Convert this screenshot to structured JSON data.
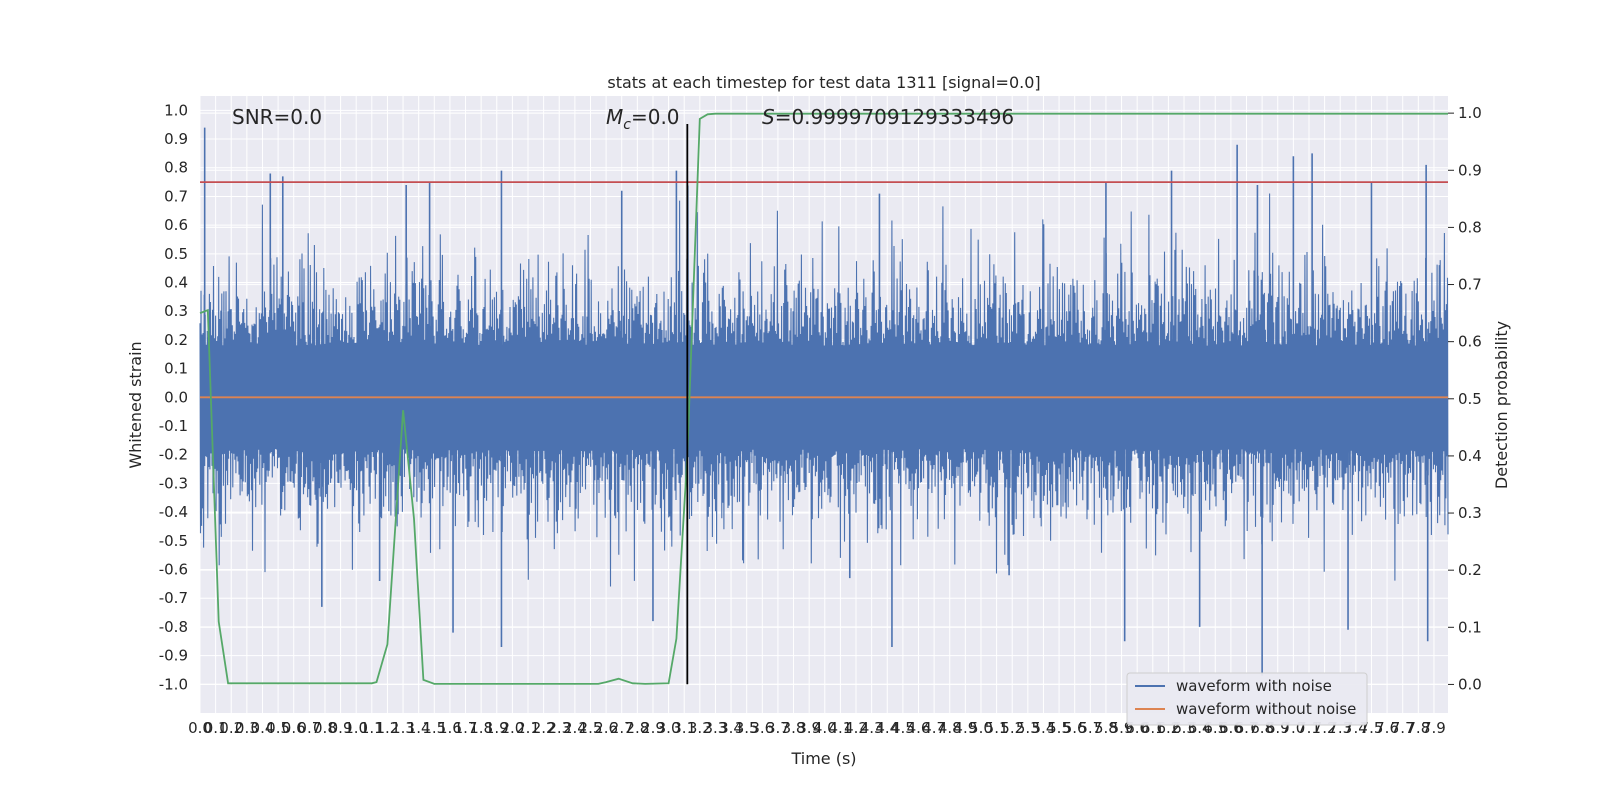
{
  "chart_data": {
    "type": "line",
    "title": "stats at each timestep for test data 1311 [signal=0.0]",
    "xlabel": "Time (s)",
    "ylabel_left": "Whitened strain",
    "ylabel_right": "Detection probability",
    "xlim": [
      0.0,
      7.99
    ],
    "ylim_left": [
      -1.1,
      1.05
    ],
    "ylim_right": [
      -0.05,
      1.03
    ],
    "x_ticks": [
      "0.0",
      "0.1",
      "0.2",
      "0.3",
      "0.4",
      "0.5",
      "0.6",
      "0.7",
      "0.8",
      "0.9",
      "1.0",
      "1.1",
      "1.2",
      "1.3",
      "1.4",
      "1.5",
      "1.6",
      "1.7",
      "1.8",
      "1.9",
      "2.0",
      "2.1",
      "2.2",
      "2.3",
      "2.4",
      "2.5",
      "2.6",
      "2.7",
      "2.8",
      "2.9",
      "3.0",
      "3.1",
      "3.2",
      "3.3",
      "3.4",
      "3.5",
      "3.6",
      "3.7",
      "3.8",
      "3.9",
      "4.0",
      "4.1",
      "4.2",
      "4.3",
      "4.4",
      "4.5",
      "4.6",
      "4.7",
      "4.8",
      "4.9",
      "5.0",
      "5.1",
      "5.2",
      "5.3",
      "5.4",
      "5.5",
      "5.6",
      "5.7",
      "5.8",
      "5.9",
      "6.0",
      "6.1",
      "6.2",
      "6.3",
      "6.4",
      "6.5",
      "6.6",
      "6.7",
      "6.8",
      "6.9",
      "7.0",
      "7.1",
      "7.2",
      "7.3",
      "7.4",
      "7.5",
      "7.6",
      "7.7",
      "7.8",
      "7.9"
    ],
    "y_ticks_left": [
      "1.0",
      "0.9",
      "0.8",
      "0.7",
      "0.6",
      "0.5",
      "0.4",
      "0.3",
      "0.2",
      "0.1",
      "0.0",
      "-0.1",
      "-0.2",
      "-0.3",
      "-0.4",
      "-0.5",
      "-0.6",
      "-0.7",
      "-0.8",
      "-0.9",
      "-1.0"
    ],
    "y_ticks_right": [
      "1.0",
      "0.9",
      "0.8",
      "0.7",
      "0.6",
      "0.5",
      "0.4",
      "0.3",
      "0.2",
      "0.1",
      "0.0"
    ],
    "annotations": {
      "snr": "SNR=0.0",
      "mc": "M",
      "mc_sub": "c",
      "mc_val": "=0.0",
      "s_italic": "S",
      "s_val": "=0.9999709129333496"
    },
    "threshold_left": 0.75,
    "marker_time": 3.12,
    "series": [
      {
        "name": "waveform with noise",
        "color": "#4c72b0",
        "x_start": 0.0,
        "x_end": 7.99,
        "amplitude": 0.33,
        "peaks": [
          [
            0.03,
            0.94
          ],
          [
            0.45,
            0.78
          ],
          [
            0.53,
            0.77
          ],
          [
            0.78,
            -0.73
          ],
          [
            1.15,
            -0.64
          ],
          [
            1.32,
            0.74
          ],
          [
            1.47,
            0.75
          ],
          [
            1.62,
            -0.82
          ],
          [
            1.93,
            0.79
          ],
          [
            1.93,
            -0.87
          ],
          [
            2.7,
            0.72
          ],
          [
            2.9,
            -0.78
          ],
          [
            3.05,
            0.79
          ],
          [
            4.16,
            -0.63
          ],
          [
            4.35,
            0.71
          ],
          [
            4.43,
            -0.87
          ],
          [
            5.18,
            -0.62
          ],
          [
            5.8,
            0.75
          ],
          [
            5.92,
            -0.85
          ],
          [
            6.22,
            0.79
          ],
          [
            6.4,
            -0.8
          ],
          [
            6.64,
            0.88
          ],
          [
            6.77,
            0.74
          ],
          [
            7.0,
            0.84
          ],
          [
            7.12,
            0.85
          ],
          [
            7.35,
            -0.81
          ],
          [
            7.5,
            0.75
          ],
          [
            7.85,
            0.81
          ],
          [
            7.86,
            -0.85
          ],
          [
            6.8,
            -0.97
          ]
        ]
      },
      {
        "name": "waveform without noise",
        "color": "#dd8452",
        "x": [
          0.0,
          7.99
        ],
        "y": [
          0.0,
          0.0
        ]
      },
      {
        "name": "",
        "color": "#55a868",
        "axis": "right",
        "x": [
          0.0,
          0.05,
          0.12,
          0.18,
          1.1,
          1.13,
          1.2,
          1.3,
          1.37,
          1.43,
          1.5,
          2.55,
          2.6,
          2.68,
          2.77,
          2.85,
          3.0,
          3.05,
          3.12,
          3.2,
          3.25,
          3.3,
          7.99
        ],
        "y": [
          0.65,
          0.655,
          0.11,
          0.002,
          0.002,
          0.004,
          0.07,
          0.48,
          0.29,
          0.008,
          0.001,
          0.001,
          0.004,
          0.01,
          0.002,
          0.001,
          0.002,
          0.08,
          0.4,
          0.99,
          0.998,
          0.999,
          0.999
        ]
      },
      {
        "name": "",
        "color": "#c44e52",
        "x": [
          0.0,
          7.99
        ],
        "y": [
          0.75,
          0.75
        ]
      }
    ],
    "legend": [
      "waveform with noise",
      "waveform without noise"
    ],
    "legend_position": "lower-right",
    "grid": true,
    "background": "#eaeaf2"
  }
}
